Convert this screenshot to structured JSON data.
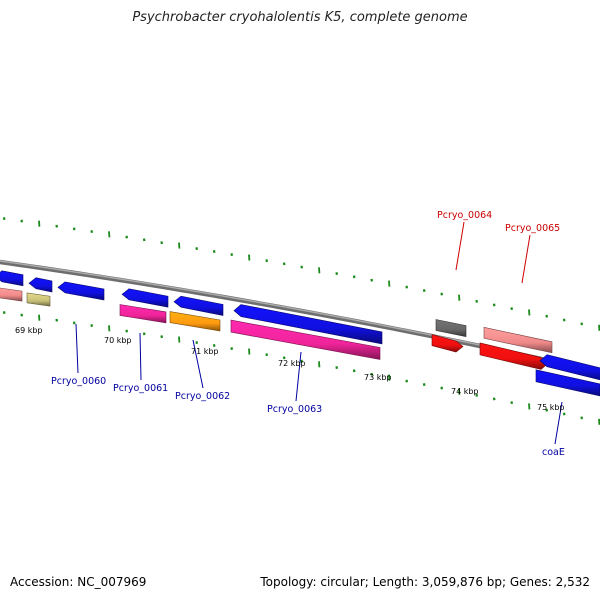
{
  "title": "Psychrobacter cryohalolentis K5, complete genome",
  "footer": {
    "accession": "Accession: NC_007969",
    "summary": "Topology: circular; Length: 3,059,876 bp; Genes: 2,532"
  },
  "colors": {
    "backbone": "#8a8a8a",
    "ticks": "#1a8a1a",
    "blue": "#1010e0",
    "salmon": "#f08a8a",
    "olive": "#c8c078",
    "magenta": "#f0249a",
    "orange": "#ff9a10",
    "gray": "#666666",
    "red": "#f01010",
    "label_blue": "#0000a0",
    "label_red": "#cc0000"
  },
  "ruler": {
    "labels": [
      "69 kbp",
      "70 kbp",
      "71 kbp",
      "72 kbp",
      "73 kbp",
      "74 kbp",
      "75 kbp"
    ]
  },
  "gene_labels": [
    {
      "name": "Pcryo_0060",
      "color": "label_blue"
    },
    {
      "name": "Pcryo_0061",
      "color": "label_blue"
    },
    {
      "name": "Pcryo_0062",
      "color": "label_blue"
    },
    {
      "name": "Pcryo_0063",
      "color": "label_blue"
    },
    {
      "name": "Pcryo_0064",
      "color": "label_red"
    },
    {
      "name": "Pcryo_0065",
      "color": "label_red"
    },
    {
      "name": "coaE",
      "color": "label_blue"
    }
  ]
}
